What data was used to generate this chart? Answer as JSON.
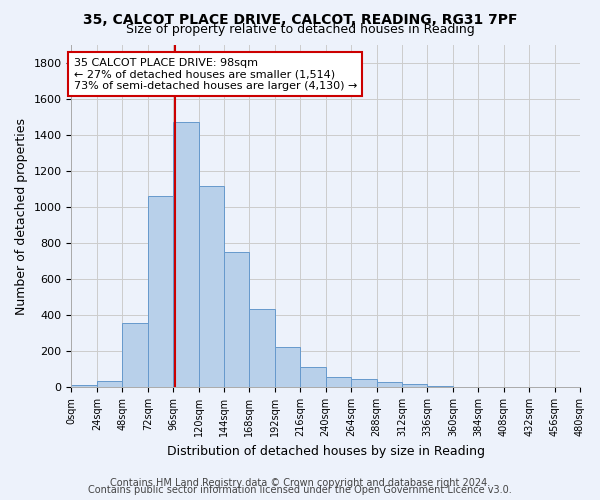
{
  "title_line1": "35, CALCOT PLACE DRIVE, CALCOT, READING, RG31 7PF",
  "title_line2": "Size of property relative to detached houses in Reading",
  "xlabel": "Distribution of detached houses by size in Reading",
  "ylabel": "Number of detached properties",
  "footnote_line1": "Contains HM Land Registry data © Crown copyright and database right 2024.",
  "footnote_line2": "Contains public sector information licensed under the Open Government Licence v3.0.",
  "annotation_line1": "35 CALCOT PLACE DRIVE: 98sqm",
  "annotation_line2": "← 27% of detached houses are smaller (1,514)",
  "annotation_line3": "73% of semi-detached houses are larger (4,130) →",
  "property_size": 98,
  "bin_edges": [
    0,
    24,
    48,
    72,
    96,
    120,
    144,
    168,
    192,
    216,
    240,
    264,
    288,
    312,
    336,
    360,
    384,
    408,
    432,
    456,
    480
  ],
  "bar_heights": [
    10,
    35,
    355,
    1060,
    1470,
    1115,
    750,
    435,
    225,
    110,
    55,
    45,
    30,
    20,
    5,
    3,
    2,
    1,
    0,
    0
  ],
  "bar_color": "#b8d0ea",
  "bar_edge_color": "#6699cc",
  "vline_color": "#cc0000",
  "vline_x": 98,
  "grid_color": "#cccccc",
  "bg_color": "#edf2fb",
  "ylim": [
    0,
    1900
  ],
  "yticks": [
    0,
    200,
    400,
    600,
    800,
    1000,
    1200,
    1400,
    1600,
    1800
  ],
  "annotation_box_color": "#cc0000",
  "annotation_fill": "#ffffff",
  "title1_fontsize": 10,
  "title2_fontsize": 9,
  "axis_label_fontsize": 9,
  "tick_fontsize": 8,
  "xtick_fontsize": 7,
  "footnote_fontsize": 7,
  "annotation_fontsize": 8
}
